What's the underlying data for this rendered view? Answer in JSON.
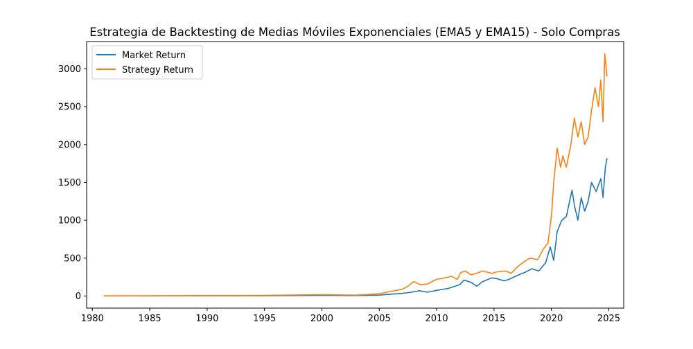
{
  "chart_data": {
    "type": "line",
    "title": "Estrategia de Backtesting de Medias Móviles Exponenciales (EMA5 y EMA15) - Solo Compras",
    "xlabel": "",
    "ylabel": "",
    "xlim": [
      1979.5,
      2026.3
    ],
    "ylim": [
      -160,
      3360
    ],
    "xticks": [
      1980,
      1985,
      1990,
      1995,
      2000,
      2005,
      2010,
      2015,
      2020,
      2025
    ],
    "yticks": [
      0,
      500,
      1000,
      1500,
      2000,
      2500,
      3000
    ],
    "grid": false,
    "legend": {
      "placement": "top-left",
      "entries": [
        "Market Return",
        "Strategy Return"
      ]
    },
    "series": [
      {
        "name": "Market Return",
        "color": "#1f77b4",
        "x": [
          1981.0,
          1985.0,
          1990.0,
          1995.0,
          2000.0,
          2003.0,
          2005.0,
          2006.0,
          2007.0,
          2007.8,
          2008.5,
          2009.2,
          2010.0,
          2011.0,
          2012.0,
          2012.4,
          2013.0,
          2013.5,
          2014.0,
          2014.8,
          2015.2,
          2015.9,
          2016.3,
          2017.0,
          2017.8,
          2018.3,
          2018.9,
          2019.5,
          2019.9,
          2020.2,
          2020.5,
          2020.9,
          2021.3,
          2021.8,
          2022.0,
          2022.3,
          2022.6,
          2022.9,
          2023.2,
          2023.5,
          2023.9,
          2024.3,
          2024.5,
          2024.7,
          2024.85
        ],
        "y": [
          2,
          2,
          3,
          4,
          8,
          6,
          12,
          25,
          35,
          50,
          70,
          50,
          75,
          100,
          150,
          210,
          180,
          130,
          190,
          240,
          230,
          200,
          220,
          270,
          320,
          360,
          330,
          440,
          650,
          470,
          850,
          1000,
          1050,
          1400,
          1200,
          1000,
          1300,
          1120,
          1250,
          1500,
          1380,
          1550,
          1300,
          1700,
          1820
        ]
      },
      {
        "name": "Strategy Return",
        "color": "#ff7f0e",
        "x": [
          1981.0,
          1985.0,
          1990.0,
          1995.0,
          2000.0,
          2003.0,
          2005.0,
          2006.0,
          2007.0,
          2007.5,
          2008.0,
          2008.6,
          2009.2,
          2010.0,
          2010.7,
          2011.3,
          2011.8,
          2012.1,
          2012.5,
          2013.0,
          2013.5,
          2014.0,
          2014.8,
          2015.3,
          2016.0,
          2016.5,
          2017.0,
          2017.6,
          2018.1,
          2018.8,
          2019.3,
          2019.7,
          2020.0,
          2020.2,
          2020.5,
          2020.8,
          2021.0,
          2021.3,
          2021.7,
          2022.0,
          2022.3,
          2022.6,
          2022.9,
          2023.2,
          2023.5,
          2023.8,
          2024.1,
          2024.3,
          2024.5,
          2024.65,
          2024.85
        ],
        "y": [
          3,
          4,
          6,
          8,
          18,
          12,
          30,
          60,
          90,
          130,
          190,
          150,
          160,
          220,
          240,
          260,
          220,
          310,
          330,
          280,
          300,
          330,
          300,
          320,
          330,
          300,
          380,
          450,
          500,
          480,
          620,
          700,
          1050,
          1500,
          1950,
          1700,
          1850,
          1700,
          2000,
          2350,
          2100,
          2300,
          2000,
          2100,
          2450,
          2750,
          2500,
          2850,
          2300,
          3200,
          2900
        ]
      }
    ]
  }
}
